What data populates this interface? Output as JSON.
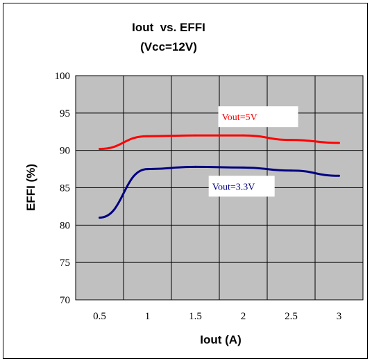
{
  "chart_data": {
    "type": "line",
    "title": "Iout  vs. EFFI",
    "subtitle": "(Vcc=12V)",
    "xlabel": "Iout (A)",
    "ylabel": "EFFI (%)",
    "x_ticks": [
      "0.5",
      "1",
      "1.5",
      "2",
      "2.5",
      "3"
    ],
    "y_ticks": [
      "70",
      "75",
      "80",
      "85",
      "90",
      "95",
      "100"
    ],
    "xlim": [
      0.25,
      3.25
    ],
    "ylim": [
      70,
      100
    ],
    "grid": true,
    "background": "#c0c0c0",
    "series": [
      {
        "name": "Vout=5V",
        "color": "#ff0000",
        "x": [
          0.5,
          1,
          1.5,
          2,
          2.5,
          3
        ],
        "y": [
          90.2,
          91.9,
          92.0,
          92.0,
          91.4,
          91.0
        ]
      },
      {
        "name": "Vout=3.3V",
        "color": "#000080",
        "x": [
          0.5,
          1,
          1.5,
          2,
          2.5,
          3
        ],
        "y": [
          81.0,
          87.5,
          87.8,
          87.7,
          87.3,
          86.6
        ]
      }
    ]
  }
}
